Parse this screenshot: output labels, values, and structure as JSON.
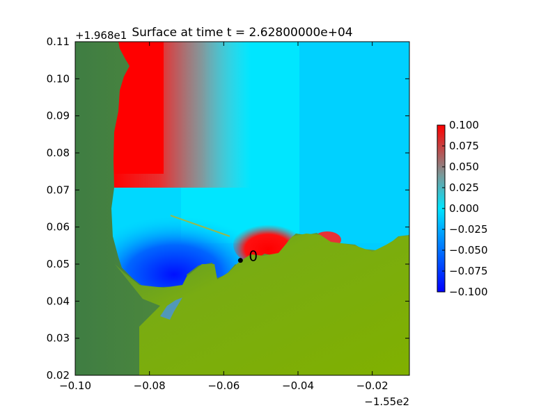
{
  "chart_data": {
    "type": "heatmap",
    "title": "Surface at time t = 2.62800000e+04",
    "xlabel": "",
    "ylabel": "",
    "x_offset_label": "−1.55e2",
    "y_offset_label": "+1.968e1",
    "xlim": [
      -0.1,
      -0.01
    ],
    "ylim": [
      0.02,
      0.11
    ],
    "x_ticks": [
      "−0.10",
      "−0.08",
      "−0.06",
      "−0.04",
      "−0.02"
    ],
    "x_tick_values": [
      -0.1,
      -0.08,
      -0.06,
      -0.04,
      -0.02
    ],
    "y_ticks": [
      "0.02",
      "0.03",
      "0.04",
      "0.05",
      "0.06",
      "0.07",
      "0.08",
      "0.09",
      "0.10",
      "0.11"
    ],
    "y_tick_values": [
      0.02,
      0.03,
      0.04,
      0.05,
      0.06,
      0.07,
      0.08,
      0.09,
      0.1,
      0.11
    ],
    "colorbar": {
      "range": [
        -0.1,
        0.1
      ],
      "ticks": [
        "0.100",
        "0.075",
        "0.050",
        "0.025",
        "0.000",
        "−0.025",
        "−0.050",
        "−0.075",
        "−0.100"
      ],
      "tick_values": [
        0.1,
        0.075,
        0.05,
        0.025,
        0.0,
        -0.025,
        -0.05,
        -0.075,
        -0.1
      ],
      "colors": [
        "#0000ff",
        "#00e5ff",
        "#ff0000"
      ]
    },
    "gauge": {
      "x": -0.0555,
      "y": 0.051,
      "label": "0"
    },
    "land_color": "#7fb000",
    "highland_color": "#3a7a3a",
    "ocean_color": "#00eaff"
  }
}
